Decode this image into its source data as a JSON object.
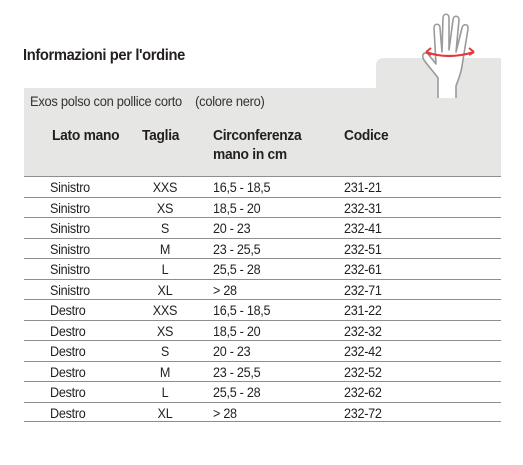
{
  "page": {
    "title": "Informazioni per l'ordine",
    "subtitle": "Exos polso con pollice corto    (colore nero)"
  },
  "table": {
    "headers": {
      "side": "Lato mano",
      "size": "Taglia",
      "circ_line1": "Circonferenza",
      "circ_line2": "mano in cm",
      "code": "Codice"
    },
    "rows": [
      {
        "side": "Sinistro",
        "size": "XXS",
        "circ": "16,5 - 18,5",
        "code": "231-21"
      },
      {
        "side": "Sinistro",
        "size": "XS",
        "circ": "18,5 - 20",
        "code": "232-31"
      },
      {
        "side": "Sinistro",
        "size": "S",
        "circ": "20 - 23",
        "code": "232-41"
      },
      {
        "side": "Sinistro",
        "size": "M",
        "circ": "23 - 25,5",
        "code": "232-51"
      },
      {
        "side": "Sinistro",
        "size": "L",
        "circ": "25,5 - 28",
        "code": "232-61"
      },
      {
        "side": "Sinistro",
        "size": "XL",
        "circ": "> 28",
        "code": "232-71"
      },
      {
        "side": "Destro",
        "size": "XXS",
        "circ": "16,5 - 18,5",
        "code": "231-22"
      },
      {
        "side": "Destro",
        "size": "XS",
        "circ": "18,5 - 20",
        "code": "232-32"
      },
      {
        "side": "Destro",
        "size": "S",
        "circ": "20 - 23",
        "code": "232-42"
      },
      {
        "side": "Destro",
        "size": "M",
        "circ": "23 - 25,5",
        "code": "232-52"
      },
      {
        "side": "Destro",
        "size": "L",
        "circ": "25,5 - 28",
        "code": "232-62"
      },
      {
        "side": "Destro",
        "size": "XL",
        "circ": "> 28",
        "code": "232-72"
      }
    ]
  },
  "illustration": {
    "icon": "hand-measure-icon",
    "arrow_color": "#e03a3e",
    "panel_color": "#e6e6e5"
  }
}
